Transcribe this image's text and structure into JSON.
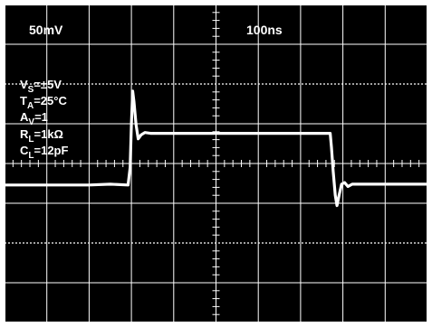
{
  "chart_data": {
    "type": "line",
    "title": "",
    "xlabel": "",
    "ylabel": "",
    "vertical_scale": "50mV",
    "horizontal_scale": "100ns",
    "conditions": [
      {
        "main": "V",
        "sub": "S",
        "rest": "=±5V"
      },
      {
        "main": "T",
        "sub": "A",
        "rest": "=25°C"
      },
      {
        "main": "A",
        "sub": "V",
        "rest": "=1"
      },
      {
        "main": "R",
        "sub": "L",
        "rest": "=1kΩ"
      },
      {
        "main": "C",
        "sub": "L",
        "rest": "=12pF"
      }
    ],
    "grid": true,
    "x_divisions": 10,
    "y_divisions": 8,
    "x_unit": "ns",
    "y_unit": "mV",
    "xlim": [
      0,
      1000
    ],
    "ylim": [
      -200,
      200
    ],
    "series": [
      {
        "x": [
          0,
          50,
          100,
          150,
          200,
          250,
          292,
          297,
          300,
          303,
          306,
          311,
          316,
          323,
          332,
          345,
          400,
          500,
          600,
          700,
          770,
          773,
          777,
          782,
          786,
          791,
          797,
          804,
          812,
          822,
          850,
          900,
          950,
          1000
        ],
        "y": [
          -27,
          -27,
          -27,
          -27,
          -27,
          -26,
          -27,
          -5,
          50,
          91,
          78,
          49,
          31,
          36,
          39,
          38,
          38,
          38,
          38,
          38,
          38,
          20,
          -10,
          -40,
          -53,
          -40,
          -26,
          -24,
          -29,
          -26,
          -26,
          -26,
          -26,
          -26
        ]
      }
    ],
    "colors": {
      "background": "#000000",
      "trace": "#ffffff",
      "grid": "#ffffff"
    }
  }
}
